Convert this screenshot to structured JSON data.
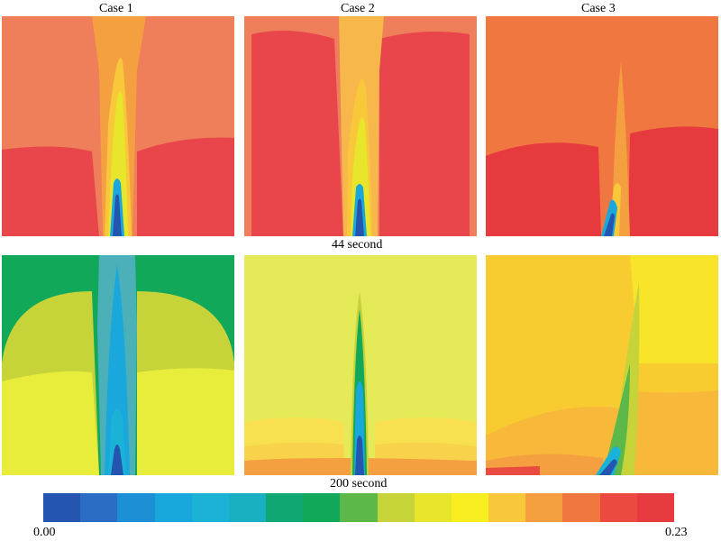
{
  "titles": [
    "Case 1",
    "Case 2",
    "Case 3"
  ],
  "row_labels": [
    "44 second",
    "200 second"
  ],
  "colorbar": {
    "min_label": "0.00",
    "max_label": "0.23",
    "colors": [
      "#2456b0",
      "#2b6cc4",
      "#1d8fd4",
      "#1aa8dc",
      "#1ab2d6",
      "#18b0c2",
      "#10a872",
      "#11a85a",
      "#5cb848",
      "#c6d43a",
      "#e8e62a",
      "#f8ee20",
      "#f8c83a",
      "#f4a040",
      "#f07840",
      "#ea4a40",
      "#e63a3e"
    ]
  },
  "panels": [
    {
      "case": "Case 1",
      "time": "44 second",
      "bg": "#ef7e5a",
      "lower": "#e8464a",
      "plume_outer": "#f8c83a",
      "plume_inner": "#e8e62a",
      "core": "#2456b0",
      "core_edge": "#1aa8dc"
    },
    {
      "case": "Case 2",
      "time": "44 second",
      "bg": "#e8464a",
      "lower": "#e8464a",
      "plume_outer": "#f7b74a",
      "plume_inner": "#e8e62a",
      "core": "#2456b0",
      "core_edge": "#1aa8dc"
    },
    {
      "case": "Case 3",
      "time": "44 second",
      "bg": "#f07840",
      "lower": "#e63a3e",
      "plume_outer": "#f4a040",
      "plume_inner": "#e8c838",
      "core": "#2456b0",
      "core_edge": "#1aa8dc"
    },
    {
      "case": "Case 1",
      "time": "200 second",
      "bg": "#11a85a",
      "lower": "#e8ec3a",
      "plume_outer": "#4cb0b8",
      "plume_inner": "#1aa8dc",
      "core": "#2456b0",
      "core_edge": "#1ab2d6"
    },
    {
      "case": "Case 2",
      "time": "200 second",
      "bg": "#e4ea58",
      "lower": "#f8d24a",
      "plume_outer": "#11a85a",
      "plume_inner": "#1aa8dc",
      "core": "#2456b0",
      "core_edge": "#1ab2d6"
    },
    {
      "case": "Case 3",
      "time": "200 second",
      "bg": "#f8cc30",
      "lower": "#f4a040",
      "plume_outer": "#c6d43a",
      "plume_inner": "#5cb848",
      "core": "#2456b0",
      "core_edge": "#1ab2d6"
    }
  ]
}
